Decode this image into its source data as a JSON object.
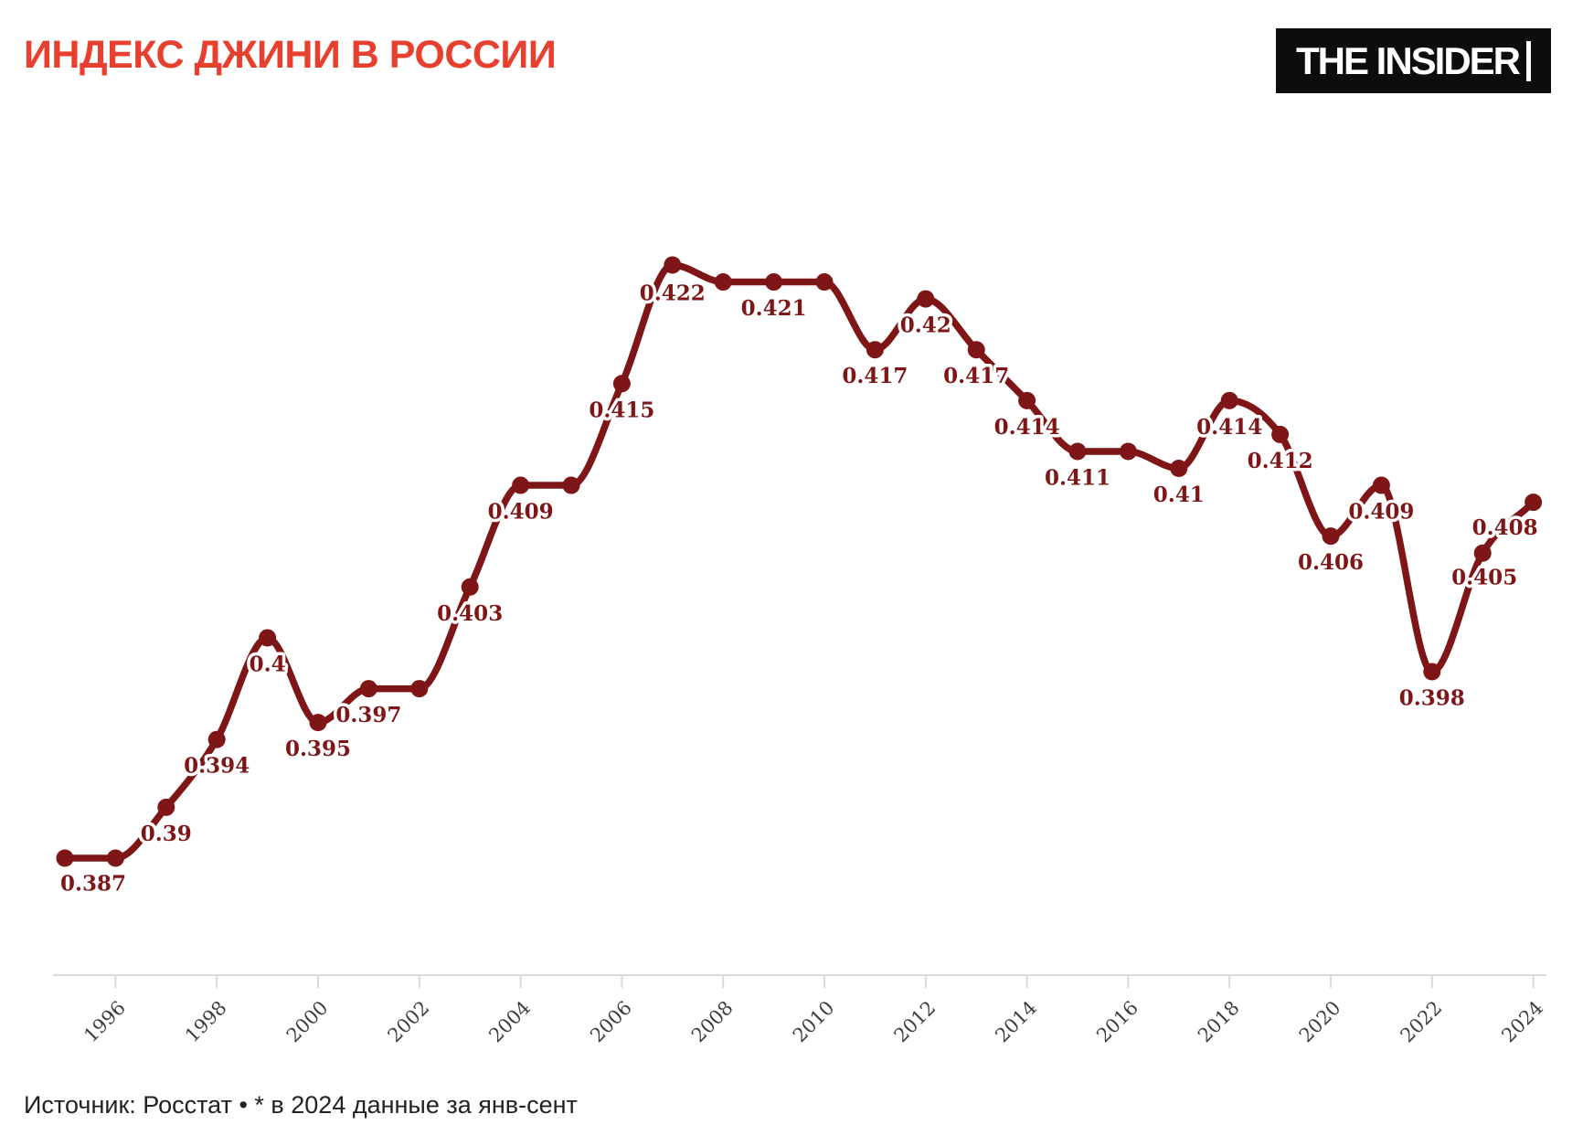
{
  "header": {
    "title": "ИНДЕКС ДЖИНИ В РОССИИ",
    "logo_text": "THE INSIDER"
  },
  "footer": {
    "source_note": "Источник: Росстат • * в 2024 данные за янв-сент"
  },
  "colors": {
    "title": "#e8402f",
    "line": "#7e1516",
    "label": "#7e1516",
    "axis": "#d9d9d9",
    "tick_label": "#3d3d3d",
    "footer": "#222222",
    "logo_bg": "#0d0d0d",
    "logo_text": "#ffffff"
  },
  "chart_data": {
    "type": "line",
    "title": "ИНДЕКС ДЖИНИ В РОССИИ",
    "series_name": "Индекс Джини",
    "xlabel": "",
    "ylabel": "",
    "x_range": [
      1995,
      2024
    ],
    "value_range_rendered": [
      0.387,
      0.422
    ],
    "grid": false,
    "legend": "none",
    "marker": "circle",
    "x_ticks": [
      1996,
      1998,
      2000,
      2002,
      2004,
      2006,
      2008,
      2010,
      2012,
      2014,
      2016,
      2018,
      2020,
      2022,
      2024
    ],
    "note": "* в 2024 данные за янв-сент",
    "points": [
      {
        "year": 1995,
        "value": 0.387,
        "label": "0.387",
        "label_offset": [
          31,
          28
        ]
      },
      {
        "year": 1996,
        "value": 0.387,
        "label": null
      },
      {
        "year": 1997,
        "value": 0.39,
        "label": "0.39"
      },
      {
        "year": 1998,
        "value": 0.394,
        "label": "0.394"
      },
      {
        "year": 1999,
        "value": 0.4,
        "label": "0.4"
      },
      {
        "year": 2000,
        "value": 0.395,
        "label": "0.395"
      },
      {
        "year": 2001,
        "value": 0.397,
        "label": "0.397"
      },
      {
        "year": 2002,
        "value": 0.397,
        "label": null
      },
      {
        "year": 2003,
        "value": 0.403,
        "label": "0.403"
      },
      {
        "year": 2004,
        "value": 0.409,
        "label": "0.409"
      },
      {
        "year": 2005,
        "value": 0.409,
        "label": null
      },
      {
        "year": 2006,
        "value": 0.415,
        "label": "0.415"
      },
      {
        "year": 2007,
        "value": 0.422,
        "label": "0.422",
        "label_offset": [
          0,
          31
        ]
      },
      {
        "year": 2008,
        "value": 0.421,
        "label": null
      },
      {
        "year": 2009,
        "value": 0.421,
        "label": "0.421"
      },
      {
        "year": 2010,
        "value": 0.421,
        "label": null
      },
      {
        "year": 2011,
        "value": 0.417,
        "label": "0.417"
      },
      {
        "year": 2012,
        "value": 0.42,
        "label": "0.42"
      },
      {
        "year": 2013,
        "value": 0.417,
        "label": "0.417"
      },
      {
        "year": 2014,
        "value": 0.414,
        "label": "0.414"
      },
      {
        "year": 2015,
        "value": 0.411,
        "label": "0.411"
      },
      {
        "year": 2016,
        "value": 0.411,
        "label": null
      },
      {
        "year": 2017,
        "value": 0.41,
        "label": "0.41"
      },
      {
        "year": 2018,
        "value": 0.414,
        "label": "0.414"
      },
      {
        "year": 2019,
        "value": 0.412,
        "label": "0.412"
      },
      {
        "year": 2020,
        "value": 0.406,
        "label": "0.406"
      },
      {
        "year": 2021,
        "value": 0.409,
        "label": "0.409"
      },
      {
        "year": 2022,
        "value": 0.398,
        "label": "0.398"
      },
      {
        "year": 2023,
        "value": 0.405,
        "label": "0.405",
        "label_offset": [
          2,
          27
        ]
      },
      {
        "year": 2024,
        "value": 0.408,
        "label": "0.408",
        "label_offset": [
          -31,
          28
        ]
      }
    ]
  }
}
